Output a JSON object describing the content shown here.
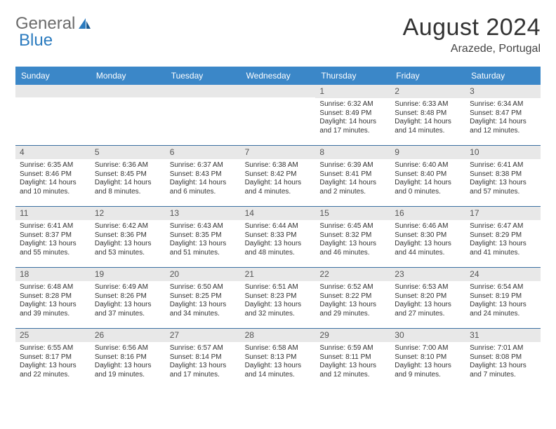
{
  "logo": {
    "text1": "General",
    "text2": "Blue"
  },
  "title": "August 2024",
  "location": "Arazede, Portugal",
  "colors": {
    "header_bg": "#3b87c8",
    "header_text": "#ffffff",
    "daynum_bg": "#e8e8e8",
    "week_border": "#3b6fa0",
    "logo_gray": "#6b6b6b",
    "logo_blue": "#2b7bbf",
    "text": "#333333"
  },
  "daynames": [
    "Sunday",
    "Monday",
    "Tuesday",
    "Wednesday",
    "Thursday",
    "Friday",
    "Saturday"
  ],
  "weeks": [
    [
      {
        "day": "",
        "sunrise": "",
        "sunset": "",
        "daylight": ""
      },
      {
        "day": "",
        "sunrise": "",
        "sunset": "",
        "daylight": ""
      },
      {
        "day": "",
        "sunrise": "",
        "sunset": "",
        "daylight": ""
      },
      {
        "day": "",
        "sunrise": "",
        "sunset": "",
        "daylight": ""
      },
      {
        "day": "1",
        "sunrise": "Sunrise: 6:32 AM",
        "sunset": "Sunset: 8:49 PM",
        "daylight": "Daylight: 14 hours and 17 minutes."
      },
      {
        "day": "2",
        "sunrise": "Sunrise: 6:33 AM",
        "sunset": "Sunset: 8:48 PM",
        "daylight": "Daylight: 14 hours and 14 minutes."
      },
      {
        "day": "3",
        "sunrise": "Sunrise: 6:34 AM",
        "sunset": "Sunset: 8:47 PM",
        "daylight": "Daylight: 14 hours and 12 minutes."
      }
    ],
    [
      {
        "day": "4",
        "sunrise": "Sunrise: 6:35 AM",
        "sunset": "Sunset: 8:46 PM",
        "daylight": "Daylight: 14 hours and 10 minutes."
      },
      {
        "day": "5",
        "sunrise": "Sunrise: 6:36 AM",
        "sunset": "Sunset: 8:45 PM",
        "daylight": "Daylight: 14 hours and 8 minutes."
      },
      {
        "day": "6",
        "sunrise": "Sunrise: 6:37 AM",
        "sunset": "Sunset: 8:43 PM",
        "daylight": "Daylight: 14 hours and 6 minutes."
      },
      {
        "day": "7",
        "sunrise": "Sunrise: 6:38 AM",
        "sunset": "Sunset: 8:42 PM",
        "daylight": "Daylight: 14 hours and 4 minutes."
      },
      {
        "day": "8",
        "sunrise": "Sunrise: 6:39 AM",
        "sunset": "Sunset: 8:41 PM",
        "daylight": "Daylight: 14 hours and 2 minutes."
      },
      {
        "day": "9",
        "sunrise": "Sunrise: 6:40 AM",
        "sunset": "Sunset: 8:40 PM",
        "daylight": "Daylight: 14 hours and 0 minutes."
      },
      {
        "day": "10",
        "sunrise": "Sunrise: 6:41 AM",
        "sunset": "Sunset: 8:38 PM",
        "daylight": "Daylight: 13 hours and 57 minutes."
      }
    ],
    [
      {
        "day": "11",
        "sunrise": "Sunrise: 6:41 AM",
        "sunset": "Sunset: 8:37 PM",
        "daylight": "Daylight: 13 hours and 55 minutes."
      },
      {
        "day": "12",
        "sunrise": "Sunrise: 6:42 AM",
        "sunset": "Sunset: 8:36 PM",
        "daylight": "Daylight: 13 hours and 53 minutes."
      },
      {
        "day": "13",
        "sunrise": "Sunrise: 6:43 AM",
        "sunset": "Sunset: 8:35 PM",
        "daylight": "Daylight: 13 hours and 51 minutes."
      },
      {
        "day": "14",
        "sunrise": "Sunrise: 6:44 AM",
        "sunset": "Sunset: 8:33 PM",
        "daylight": "Daylight: 13 hours and 48 minutes."
      },
      {
        "day": "15",
        "sunrise": "Sunrise: 6:45 AM",
        "sunset": "Sunset: 8:32 PM",
        "daylight": "Daylight: 13 hours and 46 minutes."
      },
      {
        "day": "16",
        "sunrise": "Sunrise: 6:46 AM",
        "sunset": "Sunset: 8:30 PM",
        "daylight": "Daylight: 13 hours and 44 minutes."
      },
      {
        "day": "17",
        "sunrise": "Sunrise: 6:47 AM",
        "sunset": "Sunset: 8:29 PM",
        "daylight": "Daylight: 13 hours and 41 minutes."
      }
    ],
    [
      {
        "day": "18",
        "sunrise": "Sunrise: 6:48 AM",
        "sunset": "Sunset: 8:28 PM",
        "daylight": "Daylight: 13 hours and 39 minutes."
      },
      {
        "day": "19",
        "sunrise": "Sunrise: 6:49 AM",
        "sunset": "Sunset: 8:26 PM",
        "daylight": "Daylight: 13 hours and 37 minutes."
      },
      {
        "day": "20",
        "sunrise": "Sunrise: 6:50 AM",
        "sunset": "Sunset: 8:25 PM",
        "daylight": "Daylight: 13 hours and 34 minutes."
      },
      {
        "day": "21",
        "sunrise": "Sunrise: 6:51 AM",
        "sunset": "Sunset: 8:23 PM",
        "daylight": "Daylight: 13 hours and 32 minutes."
      },
      {
        "day": "22",
        "sunrise": "Sunrise: 6:52 AM",
        "sunset": "Sunset: 8:22 PM",
        "daylight": "Daylight: 13 hours and 29 minutes."
      },
      {
        "day": "23",
        "sunrise": "Sunrise: 6:53 AM",
        "sunset": "Sunset: 8:20 PM",
        "daylight": "Daylight: 13 hours and 27 minutes."
      },
      {
        "day": "24",
        "sunrise": "Sunrise: 6:54 AM",
        "sunset": "Sunset: 8:19 PM",
        "daylight": "Daylight: 13 hours and 24 minutes."
      }
    ],
    [
      {
        "day": "25",
        "sunrise": "Sunrise: 6:55 AM",
        "sunset": "Sunset: 8:17 PM",
        "daylight": "Daylight: 13 hours and 22 minutes."
      },
      {
        "day": "26",
        "sunrise": "Sunrise: 6:56 AM",
        "sunset": "Sunset: 8:16 PM",
        "daylight": "Daylight: 13 hours and 19 minutes."
      },
      {
        "day": "27",
        "sunrise": "Sunrise: 6:57 AM",
        "sunset": "Sunset: 8:14 PM",
        "daylight": "Daylight: 13 hours and 17 minutes."
      },
      {
        "day": "28",
        "sunrise": "Sunrise: 6:58 AM",
        "sunset": "Sunset: 8:13 PM",
        "daylight": "Daylight: 13 hours and 14 minutes."
      },
      {
        "day": "29",
        "sunrise": "Sunrise: 6:59 AM",
        "sunset": "Sunset: 8:11 PM",
        "daylight": "Daylight: 13 hours and 12 minutes."
      },
      {
        "day": "30",
        "sunrise": "Sunrise: 7:00 AM",
        "sunset": "Sunset: 8:10 PM",
        "daylight": "Daylight: 13 hours and 9 minutes."
      },
      {
        "day": "31",
        "sunrise": "Sunrise: 7:01 AM",
        "sunset": "Sunset: 8:08 PM",
        "daylight": "Daylight: 13 hours and 7 minutes."
      }
    ]
  ]
}
